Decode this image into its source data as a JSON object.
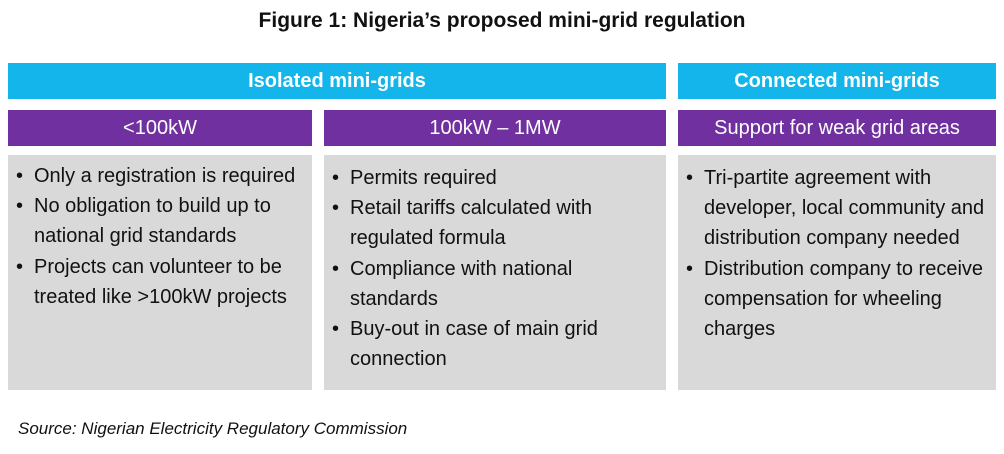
{
  "title": "Figure 1: Nigeria’s proposed mini-grid regulation",
  "headers": {
    "isolated": "Isolated mini-grids",
    "connected": "Connected mini-grids"
  },
  "columns": [
    {
      "subheader": "<100kW",
      "bullets": [
        "Only a registration is required",
        "No obligation to build up to national grid standards",
        "Projects can volunteer to be treated like >100kW projects"
      ]
    },
    {
      "subheader": "100kW – 1MW",
      "bullets": [
        "Permits required",
        "Retail tariffs calculated with regulated formula",
        "Compliance with national standards",
        "Buy-out in case of main grid connection"
      ]
    },
    {
      "subheader": "Support for weak grid areas",
      "bullets": [
        "Tri-partite agreement with developer, local community and distribution company needed",
        "Distribution company to receive compensation for wheeling charges"
      ]
    }
  ],
  "bullet_char": "•",
  "source": "Source: Nigerian Electricity Regulatory Commission",
  "colors": {
    "header_blue": "#13b5ea",
    "subheader_purple": "#7030a0",
    "content_gray": "#d9d9d9"
  }
}
